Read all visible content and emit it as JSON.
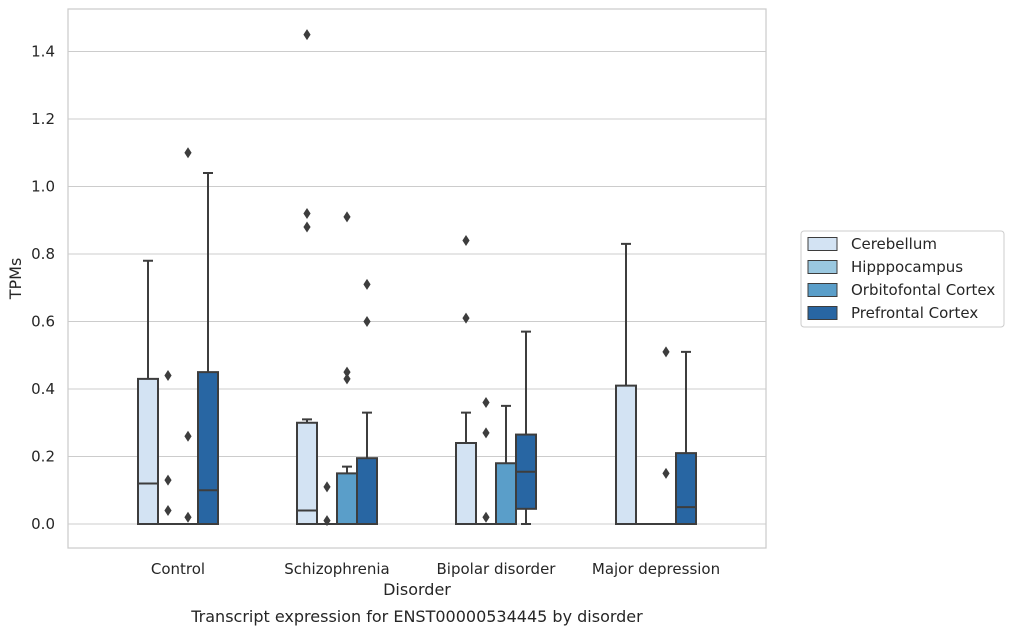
{
  "caption": "Transcript expression for ENST00000534445 by disorder",
  "chart_data": {
    "type": "box",
    "title": "",
    "xlabel": "Disorder",
    "ylabel": "TPMs",
    "ylim": [
      -0.07,
      1.52
    ],
    "yticks": [
      0.0,
      0.2,
      0.4,
      0.6,
      0.8,
      1.0,
      1.2,
      1.4
    ],
    "ytick_labels": [
      "0.0",
      "0.2",
      "0.4",
      "0.6",
      "0.8",
      "1.0",
      "1.2",
      "1.4"
    ],
    "categories": [
      "Control",
      "Schizophrenia",
      "Bipolar disorder",
      "Major depression"
    ],
    "grid": true,
    "legend_position": "right",
    "series": [
      {
        "name": "Cerebellum",
        "color": "#d3e3f3",
        "boxes": [
          {
            "q1": 0.0,
            "median": 0.12,
            "q3": 0.43,
            "whislo": 0.0,
            "whishi": 0.78,
            "fliers": []
          },
          {
            "q1": 0.0,
            "median": 0.04,
            "q3": 0.3,
            "whislo": 0.0,
            "whishi": 0.31,
            "fliers": [
              1.45,
              0.92,
              0.88
            ]
          },
          {
            "q1": 0.0,
            "median": 0.0,
            "q3": 0.24,
            "whislo": 0.0,
            "whishi": 0.33,
            "fliers": [
              0.84,
              0.61
            ]
          },
          {
            "q1": 0.0,
            "median": 0.0,
            "q3": 0.41,
            "whislo": 0.0,
            "whishi": 0.83,
            "fliers": []
          }
        ]
      },
      {
        "name": "Hipppocampus",
        "color": "#9ac8e0",
        "boxes": [
          {
            "q1": 0.0,
            "median": 0.0,
            "q3": 0.0,
            "whislo": 0.0,
            "whishi": 0.0,
            "fliers": [
              0.44,
              0.13,
              0.04
            ]
          },
          {
            "q1": 0.0,
            "median": 0.0,
            "q3": 0.0,
            "whislo": 0.0,
            "whishi": 0.0,
            "fliers": [
              0.11,
              0.01
            ]
          },
          {
            "q1": 0.0,
            "median": 0.0,
            "q3": 0.0,
            "whislo": 0.0,
            "whishi": 0.0,
            "fliers": [
              0.36,
              0.27,
              0.02
            ]
          },
          {
            "q1": 0.0,
            "median": 0.0,
            "q3": 0.0,
            "whislo": 0.0,
            "whishi": 0.0,
            "fliers": []
          }
        ]
      },
      {
        "name": "Orbitofontal Cortex",
        "color": "#5a9ec9",
        "boxes": [
          {
            "q1": 0.0,
            "median": 0.0,
            "q3": 0.0,
            "whislo": 0.0,
            "whishi": 0.0,
            "fliers": [
              1.1,
              0.26,
              0.02
            ]
          },
          {
            "q1": 0.0,
            "median": 0.0,
            "q3": 0.15,
            "whislo": 0.0,
            "whishi": 0.17,
            "fliers": [
              0.91,
              0.45,
              0.43
            ]
          },
          {
            "q1": 0.0,
            "median": 0.0,
            "q3": 0.18,
            "whislo": 0.0,
            "whishi": 0.35,
            "fliers": []
          },
          {
            "q1": 0.0,
            "median": 0.0,
            "q3": 0.0,
            "whislo": 0.0,
            "whishi": 0.0,
            "fliers": [
              0.51,
              0.15
            ]
          }
        ]
      },
      {
        "name": "Prefrontal Cortex",
        "color": "#2866a3",
        "boxes": [
          {
            "q1": 0.0,
            "median": 0.1,
            "q3": 0.45,
            "whislo": 0.0,
            "whishi": 1.04,
            "fliers": []
          },
          {
            "q1": 0.0,
            "median": 0.0,
            "q3": 0.195,
            "whislo": 0.0,
            "whishi": 0.33,
            "fliers": [
              0.71,
              0.6
            ]
          },
          {
            "q1": 0.045,
            "median": 0.155,
            "q3": 0.265,
            "whislo": 0.0,
            "whishi": 0.57,
            "fliers": []
          },
          {
            "q1": 0.0,
            "median": 0.05,
            "q3": 0.21,
            "whislo": 0.0,
            "whishi": 0.51,
            "fliers": []
          }
        ]
      }
    ]
  }
}
